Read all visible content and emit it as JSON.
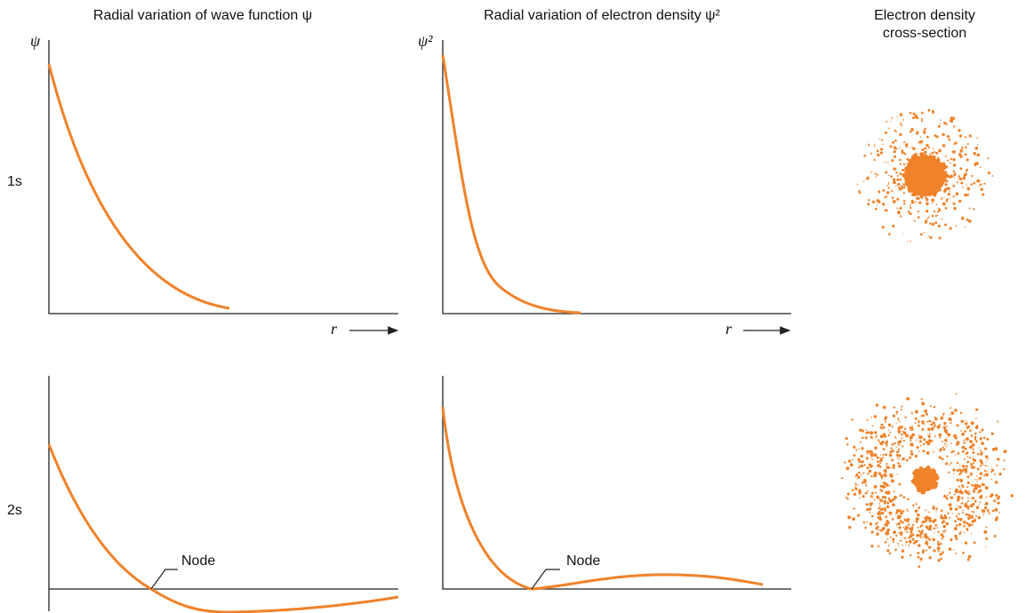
{
  "columns": [
    "Radial variation of wave function ψ",
    "Radial variation of electron density ψ²",
    [
      "Electron density",
      "cross-section"
    ]
  ],
  "rows": [
    "1s",
    "2s"
  ],
  "panels": [
    {
      "y_label": "ψ",
      "x_label": "r"
    },
    {
      "y_label": "ψ²",
      "x_label": "r"
    },
    {
      "annotation": "Node"
    },
    {
      "annotation": "Node"
    }
  ]
}
